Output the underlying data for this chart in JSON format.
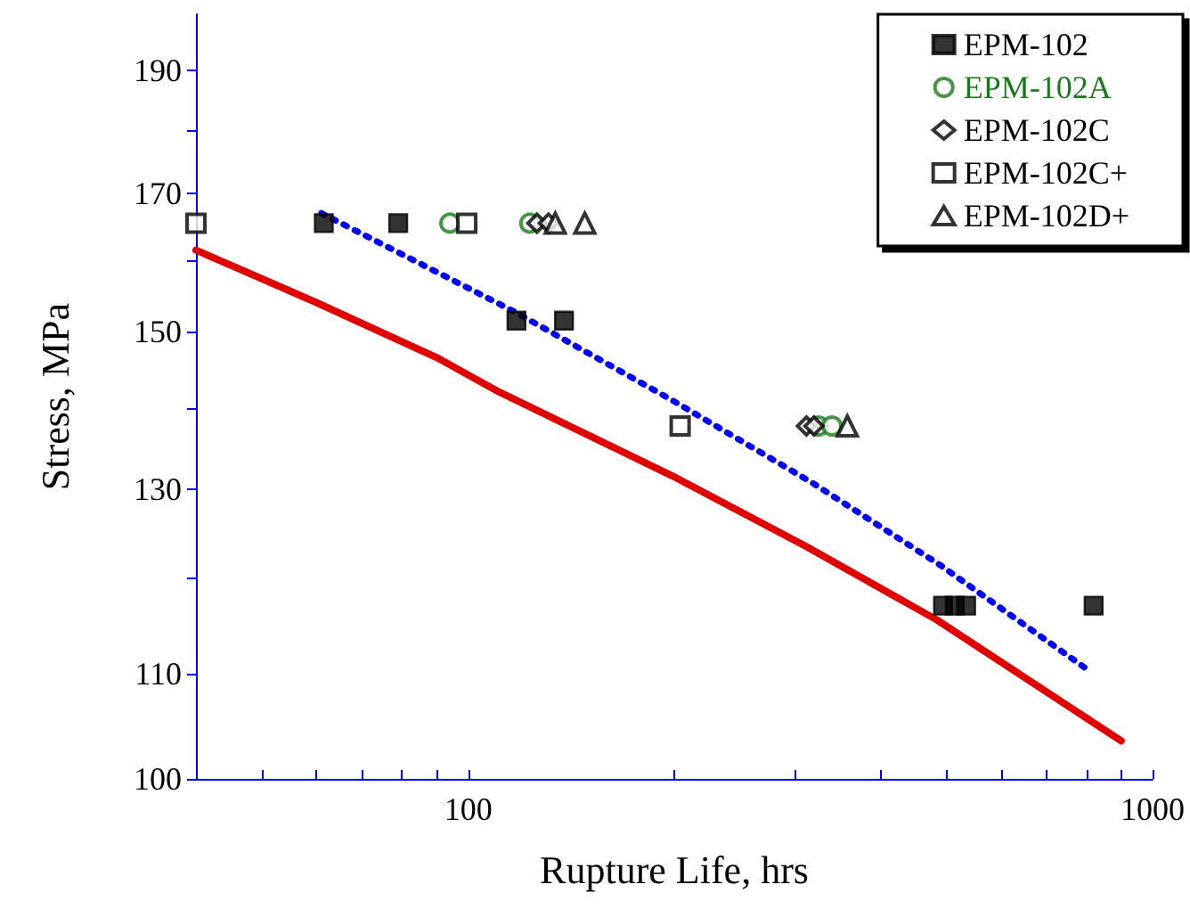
{
  "chart_data": {
    "type": "scatter",
    "xlabel": "Rupture Life, hrs",
    "ylabel": "Stress, MPa",
    "log": "xy",
    "xlim": [
      40,
      1000
    ],
    "ylim": [
      100,
      200
    ],
    "xticks": [
      {
        "value": 50,
        "label": null
      },
      {
        "value": 60,
        "label": null
      },
      {
        "value": 70,
        "label": null
      },
      {
        "value": 80,
        "label": null
      },
      {
        "value": 90,
        "label": null
      },
      100,
      {
        "value": 200,
        "label": null
      },
      {
        "value": 300,
        "label": null
      },
      {
        "value": 400,
        "label": null
      },
      {
        "value": 500,
        "label": null
      },
      {
        "value": 600,
        "label": null
      },
      {
        "value": 700,
        "label": null
      },
      {
        "value": 800,
        "label": null
      },
      {
        "value": 900,
        "label": null
      },
      1000
    ],
    "yticks": [
      100,
      110,
      {
        "value": 120,
        "label": null
      },
      130,
      {
        "value": 140,
        "label": null
      },
      150,
      {
        "value": 160,
        "label": null
      },
      170,
      {
        "value": 180,
        "label": null
      },
      190
    ],
    "grid": false,
    "legend": "top right",
    "series": [
      {
        "type": "line",
        "color": "#e00000",
        "line_style": "solid",
        "marker": "none",
        "x": [
          40,
          60,
          90,
          111,
          200,
          311,
          484,
          900
        ],
        "values": [
          161.5,
          154,
          146.5,
          142,
          131.5,
          123.5,
          115.5,
          103.5
        ]
      },
      {
        "name": "EPM-102",
        "color": "#000000",
        "marker": "square",
        "x": [
          61.5,
          79,
          117.6,
          138,
          494,
          514,
          534,
          820
        ],
        "values": [
          165.5,
          165.5,
          151.5,
          151.5,
          117,
          117,
          117,
          117
        ]
      },
      {
        "type": "line",
        "color": "#0000ff",
        "line_style": "dotted",
        "marker": "none",
        "x": [
          61,
          117,
          200,
          318,
          489,
          804
        ],
        "values": [
          167,
          152.7,
          140.8,
          130.8,
          121.4,
          110.4
        ]
      },
      {
        "name": "EPM-102A",
        "color": "#1a7a1a",
        "marker": "circle",
        "x": [
          94,
          123,
          325,
          340
        ],
        "values": [
          165.5,
          165.5,
          137.7,
          137.7
        ]
      },
      {
        "name": "EPM-102C",
        "color": "#000000",
        "marker": "diamond",
        "x": [
          126,
          131,
          312,
          320
        ],
        "values": [
          165.5,
          165.5,
          137.7,
          137.7
        ]
      },
      {
        "name": "EPM-102C+",
        "color": "#000000",
        "marker": "square",
        "x": [
          40,
          99.5,
          204
        ],
        "values": [
          165.5,
          165.5,
          137.7
        ]
      },
      {
        "name": "EPM-102D+",
        "color": "#000000",
        "marker": "triangle",
        "x": [
          134,
          148,
          358
        ],
        "values": [
          165.5,
          165.5,
          137.7
        ]
      }
    ]
  }
}
